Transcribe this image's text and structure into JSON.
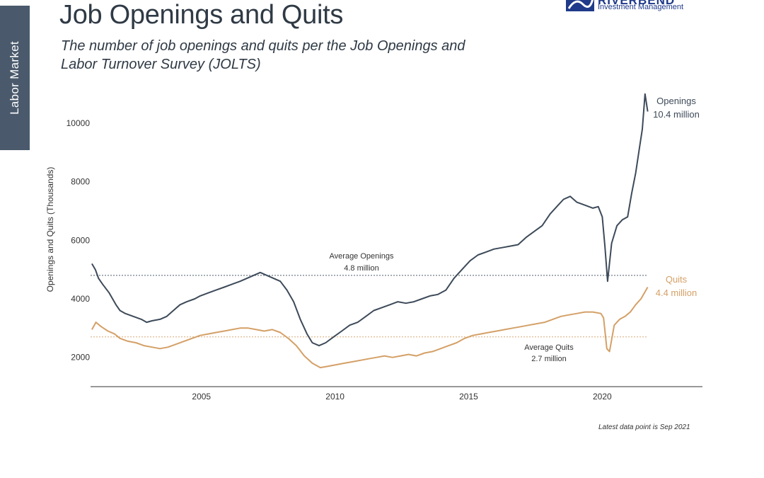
{
  "sidebar": {
    "label": "Labor Market"
  },
  "header": {
    "title": "Job Openings and Quits",
    "subtitle": "The number of job openings and quits per the Job Openings and Labor Turnover Survey (JOLTS)"
  },
  "logo": {
    "name": "RIVERBEND",
    "tagline": "Investment Management",
    "color": "#1f3a8a"
  },
  "footnote": "Latest data point is Sep 2021",
  "chart_data": {
    "type": "line",
    "title": "Job Openings and Quits",
    "ylabel": "Openings and Quits (Thousands)",
    "xlabel": "",
    "xlim": [
      2000.9,
      2023.8
    ],
    "ylim": [
      1000,
      11500
    ],
    "yticks": [
      2000,
      4000,
      6000,
      8000,
      10000
    ],
    "xticks": [
      2005,
      2010,
      2015,
      2020
    ],
    "grid": false,
    "series": [
      {
        "key": "openings",
        "color": "#3d4a59",
        "x": [
          2000.95,
          2001.08,
          2001.2,
          2001.35,
          2001.6,
          2001.85,
          2002.0,
          2002.2,
          2002.5,
          2002.8,
          2003.0,
          2003.2,
          2003.5,
          2003.75,
          2004.0,
          2004.25,
          2004.5,
          2004.8,
          2005.0,
          2005.3,
          2005.6,
          2005.9,
          2006.2,
          2006.5,
          2006.75,
          2007.0,
          2007.25,
          2007.5,
          2007.75,
          2008.0,
          2008.25,
          2008.5,
          2008.75,
          2009.0,
          2009.2,
          2009.45,
          2009.7,
          2010.0,
          2010.3,
          2010.6,
          2010.9,
          2011.2,
          2011.5,
          2011.8,
          2012.1,
          2012.4,
          2012.7,
          2013.0,
          2013.3,
          2013.6,
          2013.9,
          2014.2,
          2014.5,
          2014.8,
          2015.1,
          2015.4,
          2015.7,
          2016.0,
          2016.3,
          2016.6,
          2016.9,
          2017.2,
          2017.5,
          2017.8,
          2018.1,
          2018.4,
          2018.6,
          2018.85,
          2019.1,
          2019.4,
          2019.7,
          2019.9,
          2020.05,
          2020.15,
          2020.25,
          2020.4,
          2020.6,
          2020.8,
          2021.0,
          2021.15,
          2021.3,
          2021.45,
          2021.55,
          2021.65,
          2021.75
        ],
        "values": [
          5200,
          5000,
          4700,
          4500,
          4200,
          3800,
          3600,
          3500,
          3400,
          3300,
          3200,
          3250,
          3300,
          3400,
          3600,
          3800,
          3900,
          4000,
          4100,
          4200,
          4300,
          4400,
          4500,
          4600,
          4700,
          4800,
          4900,
          4800,
          4700,
          4600,
          4300,
          3900,
          3300,
          2800,
          2500,
          2400,
          2500,
          2700,
          2900,
          3100,
          3200,
          3400,
          3600,
          3700,
          3800,
          3900,
          3850,
          3900,
          4000,
          4100,
          4150,
          4300,
          4700,
          5000,
          5300,
          5500,
          5600,
          5700,
          5750,
          5800,
          5850,
          6100,
          6300,
          6500,
          6900,
          7200,
          7400,
          7500,
          7300,
          7200,
          7100,
          7150,
          6800,
          5800,
          4600,
          5900,
          6500,
          6700,
          6800,
          7600,
          8300,
          9200,
          9800,
          11000,
          10400
        ]
      },
      {
        "key": "quits",
        "color": "#d4a067",
        "x": [
          2000.95,
          2001.1,
          2001.3,
          2001.55,
          2001.8,
          2002.0,
          2002.3,
          2002.6,
          2002.9,
          2003.2,
          2003.5,
          2003.8,
          2004.1,
          2004.4,
          2004.7,
          2005.0,
          2005.3,
          2005.6,
          2005.9,
          2006.2,
          2006.5,
          2006.8,
          2007.1,
          2007.4,
          2007.7,
          2008.0,
          2008.3,
          2008.6,
          2008.9,
          2009.2,
          2009.5,
          2009.8,
          2010.1,
          2010.4,
          2010.7,
          2011.0,
          2011.3,
          2011.6,
          2011.9,
          2012.2,
          2012.5,
          2012.8,
          2013.1,
          2013.4,
          2013.7,
          2014.0,
          2014.3,
          2014.6,
          2014.9,
          2015.2,
          2015.5,
          2015.8,
          2016.1,
          2016.4,
          2016.7,
          2017.0,
          2017.3,
          2017.6,
          2017.9,
          2018.2,
          2018.5,
          2018.8,
          2019.1,
          2019.4,
          2019.7,
          2020.0,
          2020.1,
          2020.22,
          2020.32,
          2020.5,
          2020.7,
          2020.9,
          2021.1,
          2021.3,
          2021.5,
          2021.75
        ],
        "values": [
          2950,
          3200,
          3050,
          2900,
          2800,
          2650,
          2550,
          2500,
          2400,
          2350,
          2300,
          2350,
          2450,
          2550,
          2650,
          2750,
          2800,
          2850,
          2900,
          2950,
          3000,
          3000,
          2950,
          2900,
          2950,
          2850,
          2650,
          2400,
          2050,
          1800,
          1650,
          1700,
          1750,
          1800,
          1850,
          1900,
          1950,
          2000,
          2050,
          2000,
          2050,
          2100,
          2050,
          2150,
          2200,
          2300,
          2400,
          2500,
          2650,
          2750,
          2800,
          2850,
          2900,
          2950,
          3000,
          3050,
          3100,
          3150,
          3200,
          3300,
          3400,
          3450,
          3500,
          3550,
          3550,
          3500,
          3350,
          2300,
          2200,
          3100,
          3300,
          3400,
          3550,
          3800,
          4000,
          4400
        ]
      }
    ],
    "reference_lines": [
      {
        "key": "avg_openings",
        "value": 4800,
        "label_line1": "Average Openings",
        "label_line2": "4.8 million",
        "color": "#3d4a59"
      },
      {
        "key": "avg_quits",
        "value": 2700,
        "label_line1": "Average Quits",
        "label_line2": "2.7 million",
        "color": "#d4a067"
      }
    ],
    "end_labels": [
      {
        "series": "openings",
        "line1": "Openings",
        "line2": "10.4 million",
        "color": "#3d4a59"
      },
      {
        "series": "quits",
        "line1": "Quits",
        "line2": "4.4 million",
        "color": "#d4a067"
      }
    ]
  }
}
